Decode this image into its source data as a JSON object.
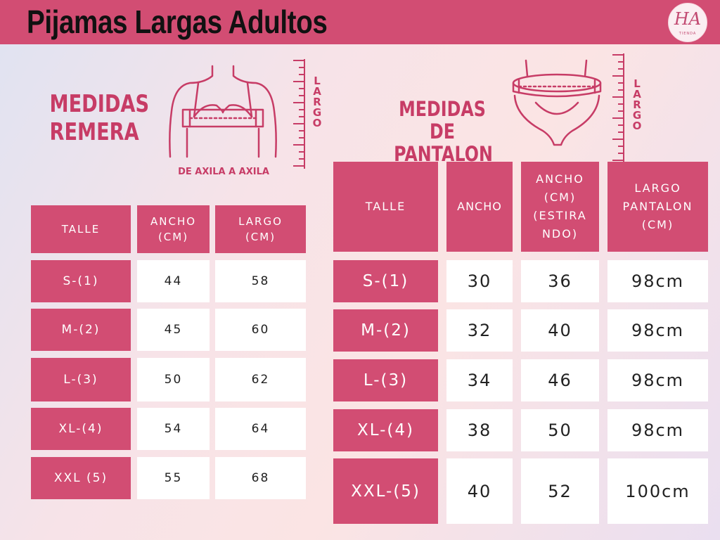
{
  "header": {
    "title": "Pijamas Largas Adultos"
  },
  "logo": {
    "initials": "HA",
    "tagline": "TIENDA"
  },
  "remera": {
    "title_line1": "MEDIDAS",
    "title_line2": "REMERA",
    "measure_label": "DE AXILA A AXILA",
    "side_label": "LARGO",
    "headers": [
      "TALLE",
      "ANCHO (CM)",
      "LARGO (CM)"
    ],
    "rows": [
      [
        "S-(1)",
        "44",
        "58"
      ],
      [
        "M-(2)",
        "45",
        "60"
      ],
      [
        "L-(3)",
        "50",
        "62"
      ],
      [
        "XL-(4)",
        "54",
        "64"
      ],
      [
        "XXL (5)",
        "55",
        "68"
      ]
    ]
  },
  "pantalon": {
    "title_line1": "MEDIDAS DE",
    "title_line2": "PANTALON",
    "side_label": "LARGO",
    "headers": [
      "TALLE",
      "ANCHO",
      "ANCHO (CM) (ESTIRA NDO)",
      "LARGO PANTALON (CM)"
    ],
    "rows": [
      [
        "S-(1)",
        "30",
        "36",
        "98cm"
      ],
      [
        "M-(2)",
        "32",
        "40",
        "98cm"
      ],
      [
        "L-(3)",
        "34",
        "46",
        "98cm"
      ],
      [
        "XL-(4)",
        "38",
        "50",
        "98cm"
      ],
      [
        "XXL-(5)",
        "40",
        "52",
        "100cm"
      ]
    ]
  },
  "colors": {
    "accent": "#d24d73",
    "title": "#c73c66",
    "cell": "#ffffff"
  }
}
